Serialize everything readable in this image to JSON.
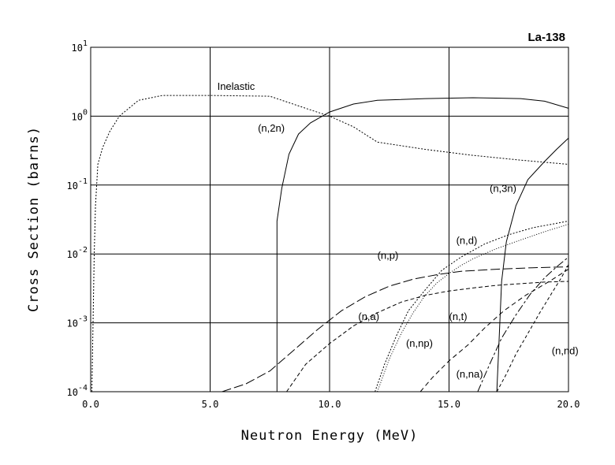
{
  "chart_data": {
    "type": "line",
    "title": "La-138",
    "xlabel": "Neutron Energy (MeV)",
    "ylabel": "Cross Section (barns)",
    "xlim": [
      0,
      20
    ],
    "ylim": [
      0.0001,
      10
    ],
    "yscale": "log",
    "grid": true,
    "x_ticks": [
      "0.0",
      "5.0",
      "10.0",
      "15.0",
      "20.0"
    ],
    "y_ticks": [
      {
        "base": "10",
        "exp": "-4"
      },
      {
        "base": "10",
        "exp": "-3"
      },
      {
        "base": "10",
        "exp": "-2"
      },
      {
        "base": "10",
        "exp": "-1"
      },
      {
        "base": "10",
        "exp": "0"
      },
      {
        "base": "10",
        "exp": "1"
      }
    ],
    "series": [
      {
        "name": "Inelastic",
        "dash": "2,2",
        "x": [
          0.05,
          0.1,
          0.15,
          0.2,
          0.3,
          0.5,
          0.8,
          1.2,
          2,
          3,
          5,
          7.5,
          9,
          10,
          11,
          12,
          14,
          16,
          18,
          20
        ],
        "y": [
          0.0001,
          0.001,
          0.01,
          0.05,
          0.2,
          0.35,
          0.6,
          1.0,
          1.7,
          2.0,
          2.0,
          1.95,
          1.3,
          1.0,
          0.7,
          0.42,
          0.33,
          0.27,
          0.23,
          0.2
        ]
      },
      {
        "name": "(n,2n)",
        "dash": "",
        "x": [
          7.8,
          7.8,
          8.0,
          8.3,
          8.7,
          9.2,
          10,
          11,
          12,
          14,
          16,
          18,
          19,
          20
        ],
        "y": [
          0.0001,
          0.03,
          0.09,
          0.28,
          0.55,
          0.8,
          1.15,
          1.5,
          1.7,
          1.8,
          1.85,
          1.8,
          1.65,
          1.3
        ]
      },
      {
        "name": "(n,3n)",
        "dash": "",
        "x": [
          17.0,
          17.1,
          17.2,
          17.4,
          17.8,
          18.3,
          19,
          19.5,
          20
        ],
        "y": [
          0.0001,
          0.0006,
          0.004,
          0.015,
          0.05,
          0.12,
          0.22,
          0.33,
          0.48
        ]
      },
      {
        "name": "(n,p)",
        "dash": "12,4",
        "x": [
          5.5,
          6.5,
          7.5,
          8.5,
          9.5,
          10.5,
          11.5,
          12.5,
          13.5,
          14.5,
          15.5,
          17,
          18.5,
          20
        ],
        "y": [
          0.0001,
          0.00013,
          0.0002,
          0.0004,
          0.0008,
          0.0015,
          0.0024,
          0.0034,
          0.0043,
          0.005,
          0.0056,
          0.006,
          0.0063,
          0.0065
        ]
      },
      {
        "name": "(n,a)",
        "dash": "5,3",
        "x": [
          8.2,
          9,
          10,
          11,
          12,
          13,
          14,
          15,
          16,
          17,
          18,
          19,
          20
        ],
        "y": [
          0.0001,
          0.00025,
          0.0005,
          0.0009,
          0.0014,
          0.002,
          0.0025,
          0.0029,
          0.0032,
          0.0035,
          0.0037,
          0.0039,
          0.004
        ]
      },
      {
        "name": "(n,d)",
        "dash": "2,2",
        "x": [
          11.9,
          12.3,
          12.8,
          13.3,
          14,
          14.7,
          15.5,
          16.5,
          17.5,
          18.5,
          20
        ],
        "y": [
          0.0001,
          0.00025,
          0.00065,
          0.0015,
          0.003,
          0.0058,
          0.009,
          0.014,
          0.019,
          0.024,
          0.03
        ]
      },
      {
        "name": "(n,np)",
        "dash": "1,2",
        "x": [
          12.0,
          12.5,
          13.0,
          13.5,
          14.0,
          14.5,
          15,
          15.5,
          16,
          17,
          18,
          19,
          20
        ],
        "y": [
          0.0001,
          0.0003,
          0.0007,
          0.0014,
          0.0025,
          0.0038,
          0.0052,
          0.0068,
          0.0085,
          0.012,
          0.016,
          0.021,
          0.027
        ]
      },
      {
        "name": "(n,t)",
        "dash": "10,3,3,3",
        "x": [
          16.2,
          16.7,
          17.2,
          17.8,
          18.4,
          19,
          19.5,
          20
        ],
        "y": [
          0.0001,
          0.00025,
          0.0006,
          0.0013,
          0.0026,
          0.0045,
          0.0065,
          0.009
        ]
      },
      {
        "name": "(n,na)",
        "dash": "6,4",
        "x": [
          13.8,
          14.3,
          15,
          15.8,
          16.5,
          17.3,
          18.2,
          19.2,
          20
        ],
        "y": [
          0.0001,
          0.00016,
          0.00028,
          0.00048,
          0.00085,
          0.0015,
          0.0025,
          0.004,
          0.006
        ]
      },
      {
        "name": "(n,nd)",
        "dash": "4,3",
        "x": [
          17.0,
          17.4,
          17.8,
          18.3,
          18.8,
          19.3,
          19.7,
          20
        ],
        "y": [
          0.0001,
          0.00018,
          0.00035,
          0.0007,
          0.0014,
          0.0027,
          0.0045,
          0.007
        ]
      }
    ],
    "annotations": [
      {
        "text": "Inelastic",
        "x": 5.3,
        "y": 2.4
      },
      {
        "text": "(n,2n)",
        "x": 7.0,
        "y": 0.6
      },
      {
        "text": "(n,3n)",
        "x": 16.7,
        "y": 0.08
      },
      {
        "text": "(n,d)",
        "x": 15.3,
        "y": 0.014
      },
      {
        "text": "(n,p)",
        "x": 12.0,
        "y": 0.0085
      },
      {
        "text": "(n,a)",
        "x": 11.2,
        "y": 0.0011
      },
      {
        "text": "(n,t)",
        "x": 15.0,
        "y": 0.0011
      },
      {
        "text": "(n,np)",
        "x": 13.2,
        "y": 0.00045
      },
      {
        "text": "(n,na)",
        "x": 15.3,
        "y": 0.00016
      },
      {
        "text": "(n,nd)",
        "x": 19.3,
        "y": 0.00035
      }
    ]
  }
}
